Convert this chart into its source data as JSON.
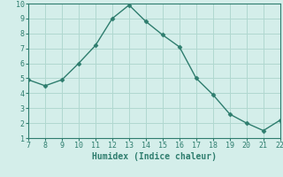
{
  "x": [
    7,
    8,
    9,
    10,
    11,
    12,
    13,
    14,
    15,
    16,
    17,
    18,
    19,
    20,
    21,
    22
  ],
  "y": [
    4.9,
    4.5,
    4.9,
    6.0,
    7.2,
    9.0,
    9.9,
    8.8,
    7.9,
    7.1,
    5.0,
    3.9,
    2.6,
    2.0,
    1.5,
    2.2
  ],
  "xlim": [
    7,
    22
  ],
  "ylim": [
    1,
    10
  ],
  "xticks": [
    7,
    8,
    9,
    10,
    11,
    12,
    13,
    14,
    15,
    16,
    17,
    18,
    19,
    20,
    21,
    22
  ],
  "yticks": [
    1,
    2,
    3,
    4,
    5,
    6,
    7,
    8,
    9,
    10
  ],
  "xlabel": "Humidex (Indice chaleur)",
  "line_color": "#2e7d6e",
  "marker": "D",
  "marker_size": 2.5,
  "bg_color": "#d4eeea",
  "grid_color": "#b0d8d0",
  "tick_color": "#2e7d6e",
  "label_fontsize": 7,
  "tick_fontsize": 6
}
